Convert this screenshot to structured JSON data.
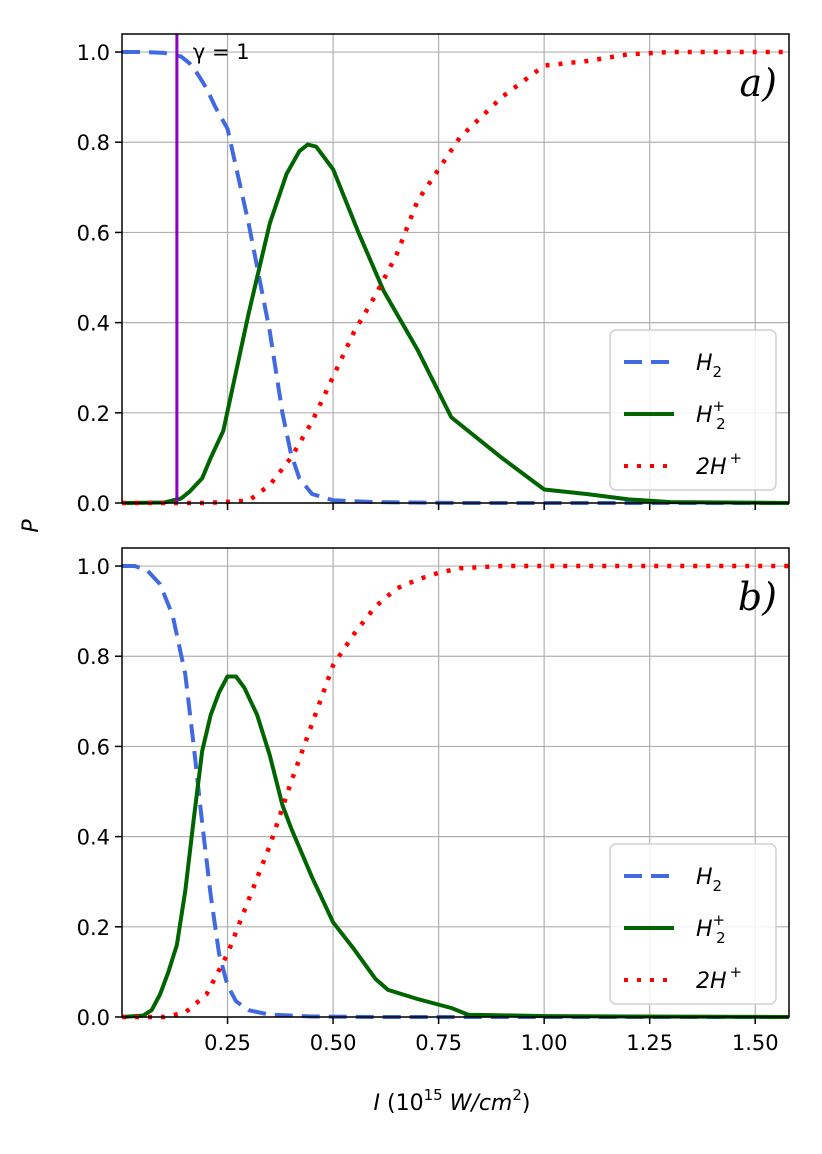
{
  "chart_data": [
    {
      "type": "line",
      "panel_label": "a)",
      "xlim": [
        0.0,
        1.58
      ],
      "ylim": [
        0.0,
        1.04
      ],
      "yticks": [
        "0.0",
        "0.2",
        "0.4",
        "0.6",
        "0.8",
        "1.0"
      ],
      "xticks": [
        0.25,
        0.5,
        0.75,
        1.0,
        1.25,
        1.5
      ],
      "show_xtick_labels": false,
      "grid": true,
      "legend_placement": "lower-right",
      "vline": {
        "x": 0.13,
        "label": "γ = 1",
        "color": "#8a00c8"
      },
      "series": [
        {
          "name": "H2",
          "style": "dashed",
          "color": "#4169e1",
          "points": [
            [
              0.0,
              1.0
            ],
            [
              0.05,
              1.0
            ],
            [
              0.1,
              0.998
            ],
            [
              0.14,
              0.99
            ],
            [
              0.16,
              0.975
            ],
            [
              0.18,
              0.95
            ],
            [
              0.2,
              0.92
            ],
            [
              0.22,
              0.88
            ],
            [
              0.25,
              0.83
            ],
            [
              0.3,
              0.62
            ],
            [
              0.35,
              0.38
            ],
            [
              0.38,
              0.2
            ],
            [
              0.4,
              0.11
            ],
            [
              0.42,
              0.055
            ],
            [
              0.45,
              0.02
            ],
            [
              0.5,
              0.006
            ],
            [
              0.6,
              0.002
            ],
            [
              0.8,
              0.0
            ],
            [
              1.58,
              0.0
            ]
          ]
        },
        {
          "name": "H2+",
          "style": "solid",
          "color": "#006400",
          "points": [
            [
              0.0,
              0.0
            ],
            [
              0.1,
              0.001
            ],
            [
              0.14,
              0.01
            ],
            [
              0.16,
              0.025
            ],
            [
              0.19,
              0.055
            ],
            [
              0.21,
              0.1
            ],
            [
              0.24,
              0.16
            ],
            [
              0.3,
              0.42
            ],
            [
              0.35,
              0.62
            ],
            [
              0.39,
              0.73
            ],
            [
              0.42,
              0.78
            ],
            [
              0.44,
              0.795
            ],
            [
              0.46,
              0.79
            ],
            [
              0.5,
              0.74
            ],
            [
              0.56,
              0.6
            ],
            [
              0.62,
              0.47
            ],
            [
              0.7,
              0.34
            ],
            [
              0.78,
              0.19
            ],
            [
              0.9,
              0.1
            ],
            [
              1.0,
              0.03
            ],
            [
              1.1,
              0.02
            ],
            [
              1.2,
              0.008
            ],
            [
              1.3,
              0.002
            ],
            [
              1.58,
              0.0
            ]
          ]
        },
        {
          "name": "2H+",
          "style": "dotted",
          "color": "#ff0000",
          "points": [
            [
              0.0,
              0.0
            ],
            [
              0.2,
              0.0
            ],
            [
              0.3,
              0.005
            ],
            [
              0.35,
              0.04
            ],
            [
              0.4,
              0.1
            ],
            [
              0.45,
              0.18
            ],
            [
              0.5,
              0.28
            ],
            [
              0.55,
              0.38
            ],
            [
              0.6,
              0.46
            ],
            [
              0.65,
              0.55
            ],
            [
              0.7,
              0.67
            ],
            [
              0.75,
              0.74
            ],
            [
              0.8,
              0.81
            ],
            [
              0.9,
              0.9
            ],
            [
              1.0,
              0.97
            ],
            [
              1.1,
              0.98
            ],
            [
              1.2,
              0.995
            ],
            [
              1.3,
              1.0
            ],
            [
              1.58,
              1.0
            ]
          ]
        }
      ]
    },
    {
      "type": "line",
      "panel_label": "b)",
      "xlim": [
        0.0,
        1.58
      ],
      "ylim": [
        0.0,
        1.04
      ],
      "yticks": [
        "0.0",
        "0.2",
        "0.4",
        "0.6",
        "0.8",
        "1.0"
      ],
      "xticks": [
        0.25,
        0.5,
        0.75,
        1.0,
        1.25,
        1.5
      ],
      "xtick_labels": [
        "0.25",
        "0.50",
        "0.75",
        "1.00",
        "1.25",
        "1.50"
      ],
      "show_xtick_labels": true,
      "grid": true,
      "legend_placement": "lower-right",
      "series": [
        {
          "name": "H2",
          "style": "dashed",
          "color": "#4169e1",
          "points": [
            [
              0.0,
              1.0
            ],
            [
              0.03,
              1.0
            ],
            [
              0.06,
              0.99
            ],
            [
              0.09,
              0.96
            ],
            [
              0.12,
              0.89
            ],
            [
              0.15,
              0.76
            ],
            [
              0.17,
              0.6
            ],
            [
              0.19,
              0.43
            ],
            [
              0.21,
              0.27
            ],
            [
              0.23,
              0.14
            ],
            [
              0.25,
              0.07
            ],
            [
              0.27,
              0.035
            ],
            [
              0.3,
              0.015
            ],
            [
              0.35,
              0.005
            ],
            [
              0.45,
              0.001
            ],
            [
              0.6,
              0.0
            ],
            [
              1.58,
              0.0
            ]
          ]
        },
        {
          "name": "H2+",
          "style": "solid",
          "color": "#006400",
          "points": [
            [
              0.0,
              0.0
            ],
            [
              0.05,
              0.003
            ],
            [
              0.07,
              0.015
            ],
            [
              0.09,
              0.05
            ],
            [
              0.11,
              0.1
            ],
            [
              0.13,
              0.16
            ],
            [
              0.15,
              0.28
            ],
            [
              0.17,
              0.44
            ],
            [
              0.19,
              0.59
            ],
            [
              0.21,
              0.67
            ],
            [
              0.23,
              0.72
            ],
            [
              0.25,
              0.755
            ],
            [
              0.27,
              0.755
            ],
            [
              0.29,
              0.73
            ],
            [
              0.32,
              0.67
            ],
            [
              0.35,
              0.58
            ],
            [
              0.38,
              0.47
            ],
            [
              0.4,
              0.42
            ],
            [
              0.45,
              0.31
            ],
            [
              0.5,
              0.21
            ],
            [
              0.55,
              0.15
            ],
            [
              0.6,
              0.085
            ],
            [
              0.63,
              0.06
            ],
            [
              0.7,
              0.04
            ],
            [
              0.78,
              0.02
            ],
            [
              0.82,
              0.005
            ],
            [
              1.0,
              0.002
            ],
            [
              1.2,
              0.001
            ],
            [
              1.58,
              0.0
            ]
          ]
        },
        {
          "name": "2H+",
          "style": "dotted",
          "color": "#ff0000",
          "points": [
            [
              0.0,
              0.0
            ],
            [
              0.1,
              0.0
            ],
            [
              0.15,
              0.01
            ],
            [
              0.2,
              0.05
            ],
            [
              0.25,
              0.14
            ],
            [
              0.3,
              0.26
            ],
            [
              0.35,
              0.38
            ],
            [
              0.4,
              0.52
            ],
            [
              0.45,
              0.65
            ],
            [
              0.5,
              0.78
            ],
            [
              0.55,
              0.85
            ],
            [
              0.6,
              0.91
            ],
            [
              0.65,
              0.95
            ],
            [
              0.7,
              0.97
            ],
            [
              0.75,
              0.985
            ],
            [
              0.8,
              0.995
            ],
            [
              0.9,
              1.0
            ],
            [
              1.58,
              1.0
            ]
          ]
        }
      ]
    }
  ],
  "ylabel": "P",
  "xlabel": "I (10",
  "xlabel_exp": "15",
  "xlabel_unit": " W/cm",
  "xlabel_unit_exp": "2",
  "xlabel_close": ")",
  "legend_labels": [
    "H",
    "H",
    "2H"
  ],
  "legend_subs": [
    "2",
    "2",
    ""
  ],
  "legend_sups": [
    "",
    "+",
    "+"
  ]
}
